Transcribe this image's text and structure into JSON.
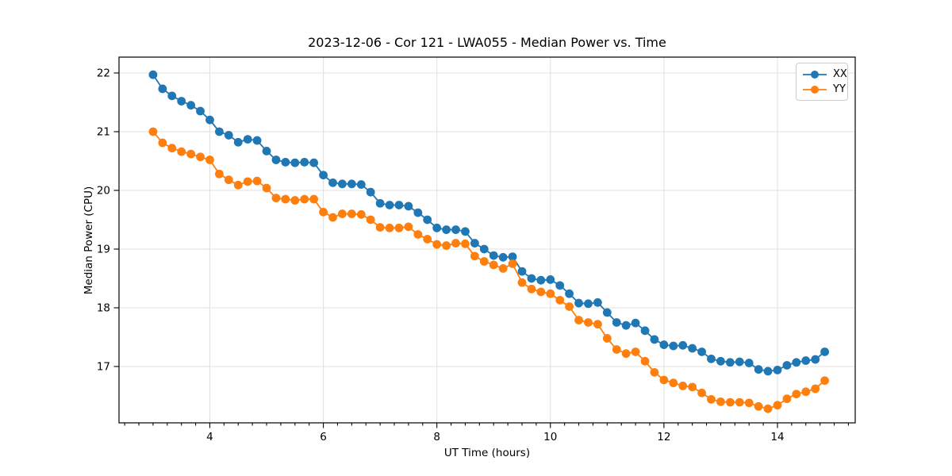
{
  "chart_data": {
    "type": "line",
    "title": "2023-12-06 - Cor 121 - LWA055 - Median Power vs. Time",
    "xlabel": "UT Time (hours)",
    "ylabel": "Median Power (CPU)",
    "xlim": [
      2.4,
      15.37
    ],
    "ylim": [
      16.04,
      22.27
    ],
    "x_major_ticks": [
      4,
      6,
      8,
      10,
      12,
      14
    ],
    "x_minor_tick_step": 0.25,
    "y_major_ticks": [
      17,
      18,
      19,
      20,
      21,
      22
    ],
    "grid": true,
    "grid_color": "#e0e0e0",
    "legend_position": "upper right",
    "x": [
      3.0,
      3.167,
      3.333,
      3.5,
      3.667,
      3.833,
      4.0,
      4.167,
      4.333,
      4.5,
      4.667,
      4.833,
      5.0,
      5.167,
      5.333,
      5.5,
      5.667,
      5.833,
      6.0,
      6.167,
      6.333,
      6.5,
      6.667,
      6.833,
      7.0,
      7.167,
      7.333,
      7.5,
      7.667,
      7.833,
      8.0,
      8.167,
      8.333,
      8.5,
      8.667,
      8.833,
      9.0,
      9.167,
      9.333,
      9.5,
      9.667,
      9.833,
      10.0,
      10.167,
      10.333,
      10.5,
      10.667,
      10.833,
      11.0,
      11.167,
      11.333,
      11.5,
      11.667,
      11.833,
      12.0,
      12.167,
      12.333,
      12.5,
      12.667,
      12.833,
      13.0,
      13.167,
      13.333,
      13.5,
      13.667,
      13.833,
      14.0,
      14.167,
      14.333,
      14.5,
      14.667,
      14.833
    ],
    "series": [
      {
        "name": "XX",
        "color": "#1f77b4",
        "values": [
          21.97,
          21.73,
          21.61,
          21.52,
          21.45,
          21.35,
          21.2,
          21.0,
          20.94,
          20.82,
          20.87,
          20.85,
          20.67,
          20.52,
          20.48,
          20.47,
          20.48,
          20.47,
          20.26,
          20.13,
          20.11,
          20.11,
          20.1,
          19.97,
          19.78,
          19.75,
          19.75,
          19.73,
          19.62,
          19.5,
          19.36,
          19.33,
          19.33,
          19.3,
          19.1,
          19.0,
          18.89,
          18.86,
          18.87,
          18.62,
          18.5,
          18.47,
          18.48,
          18.38,
          18.24,
          18.08,
          18.07,
          18.09,
          17.92,
          17.75,
          17.7,
          17.74,
          17.61,
          17.46,
          17.37,
          17.35,
          17.36,
          17.31,
          17.25,
          17.13,
          17.09,
          17.07,
          17.08,
          17.06,
          16.95,
          16.92,
          16.94,
          17.02,
          17.07,
          17.1,
          17.12,
          17.25
        ]
      },
      {
        "name": "YY",
        "color": "#ff7f0e",
        "values": [
          21.0,
          20.81,
          20.72,
          20.66,
          20.62,
          20.57,
          20.52,
          20.28,
          20.18,
          20.09,
          20.15,
          20.16,
          20.04,
          19.87,
          19.85,
          19.83,
          19.85,
          19.85,
          19.63,
          19.54,
          19.6,
          19.6,
          19.59,
          19.5,
          19.37,
          19.36,
          19.36,
          19.38,
          19.25,
          19.17,
          19.08,
          19.06,
          19.1,
          19.09,
          18.88,
          18.79,
          18.73,
          18.67,
          18.75,
          18.43,
          18.32,
          18.27,
          18.24,
          18.13,
          18.02,
          17.79,
          17.75,
          17.72,
          17.48,
          17.29,
          17.22,
          17.25,
          17.09,
          16.9,
          16.77,
          16.72,
          16.67,
          16.65,
          16.55,
          16.44,
          16.4,
          16.39,
          16.39,
          16.38,
          16.32,
          16.28,
          16.34,
          16.45,
          16.53,
          16.57,
          16.62,
          16.76
        ]
      }
    ]
  }
}
